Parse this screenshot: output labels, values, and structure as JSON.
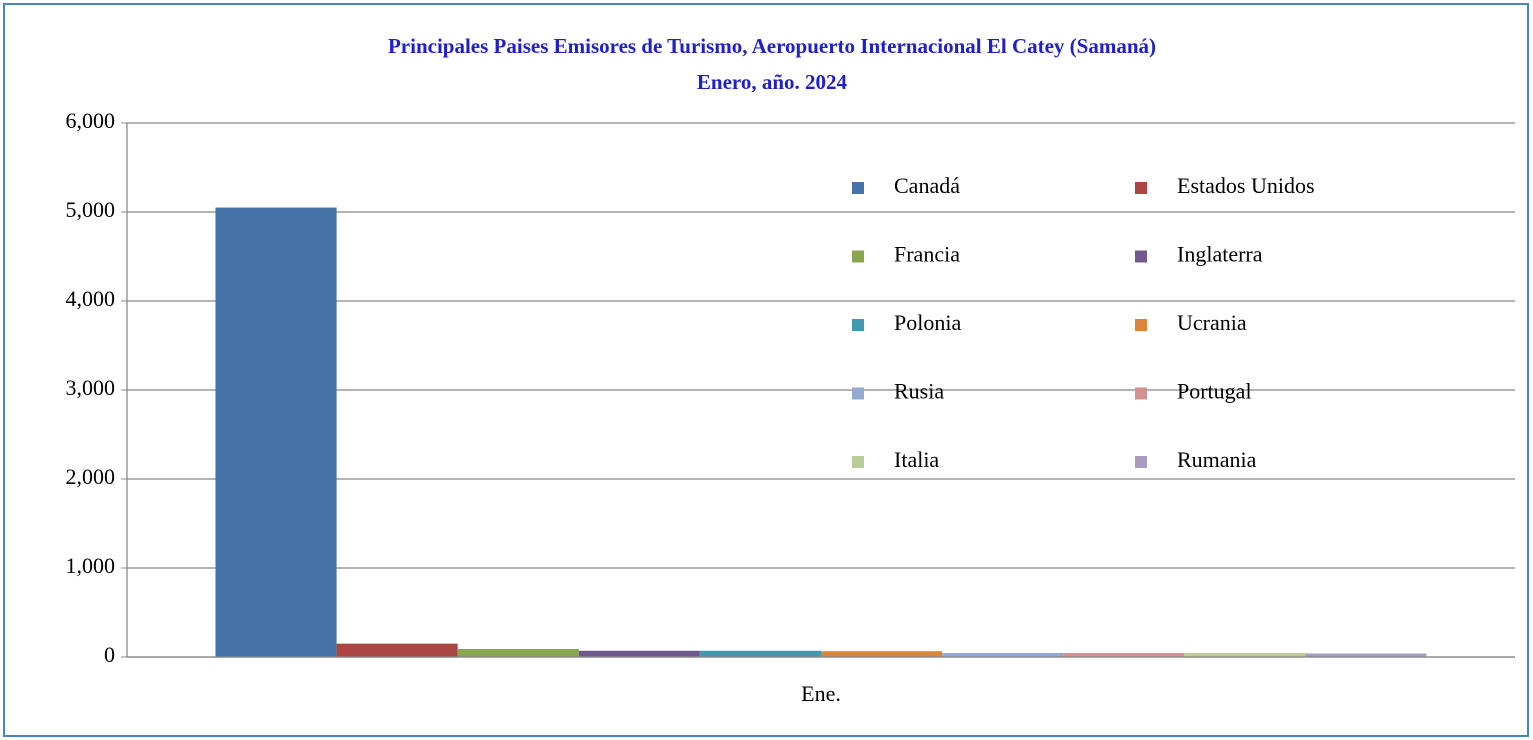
{
  "chart_data": {
    "type": "bar",
    "title": "Principales Paises Emisores de Turismo, Aeropuerto  Internacional  El Catey (Samaná)",
    "subtitle": "Enero, año. 2024",
    "categories": [
      "Ene."
    ],
    "series": [
      {
        "name": "Canadá",
        "color": "#4572a7",
        "values": [
          5050
        ]
      },
      {
        "name": "Estados Unidos",
        "color": "#aa4643",
        "values": [
          150
        ]
      },
      {
        "name": "Francia",
        "color": "#89a54e",
        "values": [
          90
        ]
      },
      {
        "name": "Inglaterra",
        "color": "#71588f",
        "values": [
          70
        ]
      },
      {
        "name": "Polonia",
        "color": "#4198af",
        "values": [
          70
        ]
      },
      {
        "name": "Ucrania",
        "color": "#db843d",
        "values": [
          65
        ]
      },
      {
        "name": "Rusia",
        "color": "#93a9cf",
        "values": [
          45
        ]
      },
      {
        "name": "Portugal",
        "color": "#d19392",
        "values": [
          45
        ]
      },
      {
        "name": "Italia",
        "color": "#b9cd96",
        "values": [
          45
        ]
      },
      {
        "name": "Rumania",
        "color": "#a99bbd",
        "values": [
          40
        ]
      }
    ],
    "ylim": [
      0,
      6000
    ],
    "yticks": [
      0,
      {
        "value": 1000,
        "label": "1,000"
      },
      {
        "value": 2000,
        "label": "2,000"
      },
      {
        "value": 3000,
        "label": "3,000"
      },
      {
        "value": 4000,
        "label": "4,000"
      },
      {
        "value": 5000,
        "label": "5,000"
      },
      {
        "value": 6000,
        "label": "6,000"
      }
    ],
    "grid": true,
    "legend": "upper right"
  }
}
